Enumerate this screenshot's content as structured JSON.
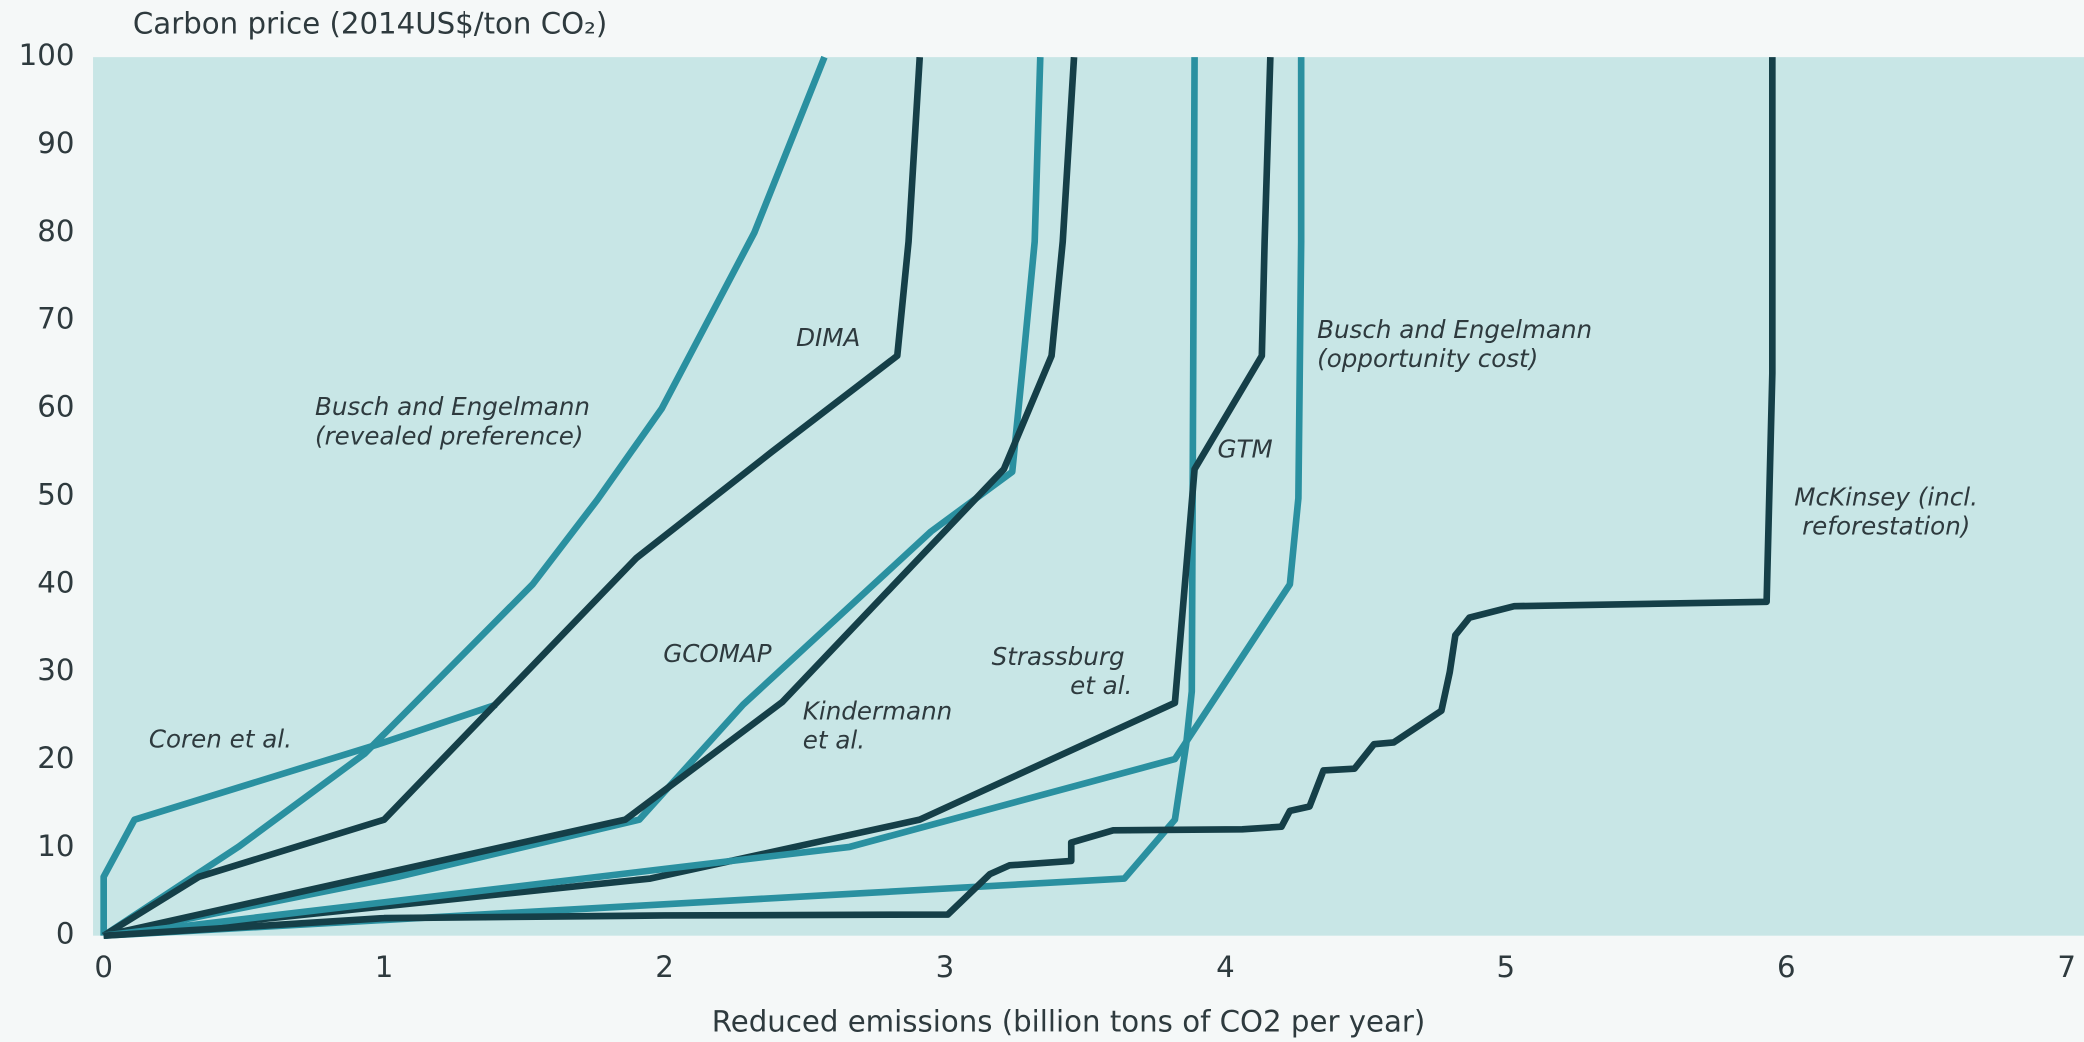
{
  "chart_data": {
    "type": "line",
    "ylabel": "Carbon price (2014US$/ton CO₂)",
    "xlabel": "Reduced emissions (billion tons of CO2 per year)",
    "xlim": [
      0,
      7
    ],
    "xticks": [
      0,
      1,
      2,
      3,
      4,
      5,
      6,
      7
    ],
    "ylim": [
      0,
      100
    ],
    "yticks": [
      0,
      10,
      20,
      30,
      40,
      50,
      60,
      70,
      80,
      90,
      100
    ],
    "grid": false,
    "series": [
      {
        "name": "Coren et al.",
        "color": "#2a90a0",
        "x": [
          0,
          0.0,
          0.11,
          0.98,
          1.4
        ],
        "values": [
          0,
          6.7,
          13.2,
          21.8,
          26.3
        ]
      },
      {
        "name": "Busch and Engelmann (revealed preference)",
        "color": "#2a90a0",
        "x": [
          0,
          0.48,
          0.93,
          1.53,
          1.76,
          1.99,
          2.32,
          2.57
        ],
        "values": [
          0,
          10.1,
          20.7,
          40,
          49.6,
          60,
          80,
          100
        ]
      },
      {
        "name": "DIMA",
        "color": "#153f48",
        "x": [
          0,
          0.34,
          1,
          1.9,
          2.38,
          2.83,
          2.87,
          2.91
        ],
        "values": [
          0,
          6.7,
          13.2,
          43,
          55,
          66,
          79,
          100
        ]
      },
      {
        "name": "GCOMAP",
        "color": "#2a90a0",
        "x": [
          0,
          1.05,
          1.91,
          2.28,
          2.95,
          3.24,
          3.28,
          3.32,
          3.34
        ],
        "values": [
          0,
          6.7,
          13.2,
          26.3,
          46,
          52.8,
          65.7,
          79,
          100
        ]
      },
      {
        "name": "Kindermann et al.",
        "color": "#153f48",
        "x": [
          0,
          1.86,
          2.42,
          3.21,
          3.38,
          3.42,
          3.46
        ],
        "values": [
          0,
          13.2,
          26.6,
          53.1,
          66,
          79,
          100
        ]
      },
      {
        "name": "Strassburg et al.",
        "color": "#2a90a0",
        "x": [
          0,
          3.64,
          3.82,
          3.86,
          3.88,
          3.89
        ],
        "values": [
          0,
          6.5,
          13.2,
          21.8,
          27.8,
          100
        ]
      },
      {
        "name": "GTM",
        "color": "#153f48",
        "x": [
          0,
          1.95,
          2.91,
          3.82,
          3.89,
          4.13,
          4.14,
          4.16
        ],
        "values": [
          0,
          6.5,
          13.2,
          26.5,
          53.1,
          66,
          79,
          100
        ]
      },
      {
        "name": "Busch and Engelmann (opportunity cost)",
        "color": "#2a90a0",
        "x": [
          0,
          2.66,
          3.82,
          4.23,
          4.26,
          4.27,
          4.27
        ],
        "values": [
          0,
          10.1,
          20.1,
          40,
          49.8,
          79,
          100
        ]
      },
      {
        "name": "McKinsey (incl. reforestation)",
        "color": "#153f48",
        "x": [
          0,
          1,
          2,
          3.01,
          3.16,
          3.23,
          3.45,
          3.45,
          3.6,
          4.06,
          4.2,
          4.23,
          4.3,
          4.35,
          4.46,
          4.53,
          4.6,
          4.77,
          4.8,
          4.82,
          4.87,
          5.03,
          5.93,
          5.95,
          5.95
        ],
        "values": [
          0,
          2,
          2.3,
          2.4,
          7,
          8,
          8.5,
          10.6,
          12,
          12.1,
          12.4,
          14.2,
          14.7,
          18.8,
          19,
          21.8,
          22,
          25.6,
          30,
          34.2,
          36.2,
          37.5,
          38,
          64,
          100
        ]
      }
    ]
  }
}
